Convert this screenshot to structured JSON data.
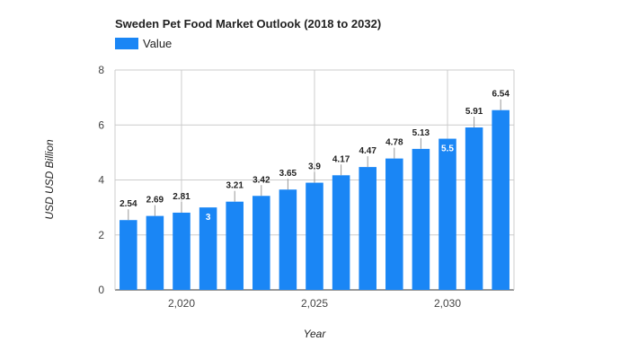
{
  "chart_data": {
    "type": "bar",
    "title": "Sweden Pet Food Market Outlook (2018 to 2032)",
    "xlabel": "Year",
    "ylabel": "USD USD Billion",
    "legend": "top-left",
    "grid": true,
    "ylim": [
      0,
      8
    ],
    "y_ticks": [
      0,
      2,
      4,
      6,
      8
    ],
    "x_ticks": [
      2020,
      2025,
      2030
    ],
    "x_tick_labels": [
      "2,020",
      "2,025",
      "2,030"
    ],
    "x": [
      2018,
      2019,
      2020,
      2021,
      2022,
      2023,
      2024,
      2025,
      2026,
      2027,
      2028,
      2029,
      2030,
      2031,
      2032
    ],
    "series": [
      {
        "name": "Value",
        "color": "#1a86f5",
        "values": [
          2.54,
          2.69,
          2.81,
          3,
          3.21,
          3.42,
          3.65,
          3.9,
          4.17,
          4.47,
          4.78,
          5.13,
          5.5,
          5.91,
          6.54
        ]
      }
    ]
  }
}
